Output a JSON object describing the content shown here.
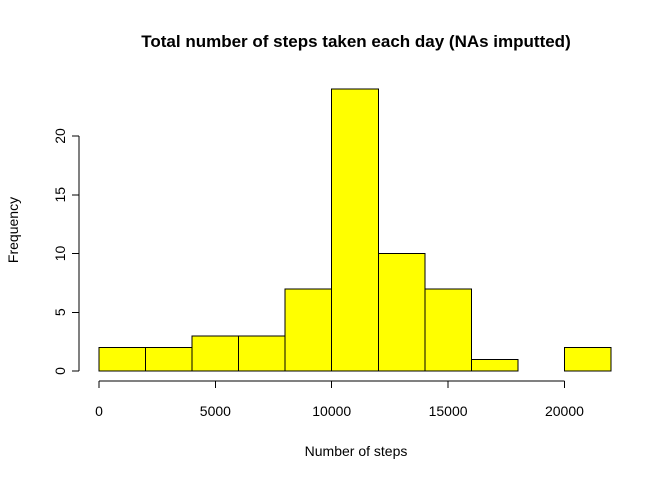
{
  "chart_data": {
    "type": "bar",
    "title": "Total number of steps taken each day (NAs imputted)",
    "xlabel": "Number of steps",
    "ylabel": "Frequency",
    "bin_width": 2000,
    "bins": [
      {
        "from": 0,
        "to": 2000,
        "count": 2
      },
      {
        "from": 2000,
        "to": 4000,
        "count": 2
      },
      {
        "from": 4000,
        "to": 6000,
        "count": 3
      },
      {
        "from": 6000,
        "to": 8000,
        "count": 3
      },
      {
        "from": 8000,
        "to": 10000,
        "count": 7
      },
      {
        "from": 10000,
        "to": 12000,
        "count": 24
      },
      {
        "from": 12000,
        "to": 14000,
        "count": 10
      },
      {
        "from": 14000,
        "to": 16000,
        "count": 7
      },
      {
        "from": 16000,
        "to": 18000,
        "count": 1
      },
      {
        "from": 18000,
        "to": 20000,
        "count": 0
      },
      {
        "from": 20000,
        "to": 22000,
        "count": 2
      }
    ],
    "xlim": [
      0,
      22000
    ],
    "ylim": [
      0,
      24
    ],
    "x_ticks": [
      0,
      5000,
      10000,
      15000,
      20000
    ],
    "y_ticks": [
      0,
      5,
      10,
      15,
      20
    ],
    "bar_color": "#ffff00",
    "border_color": "#000000",
    "grid": false,
    "legend": "none"
  }
}
